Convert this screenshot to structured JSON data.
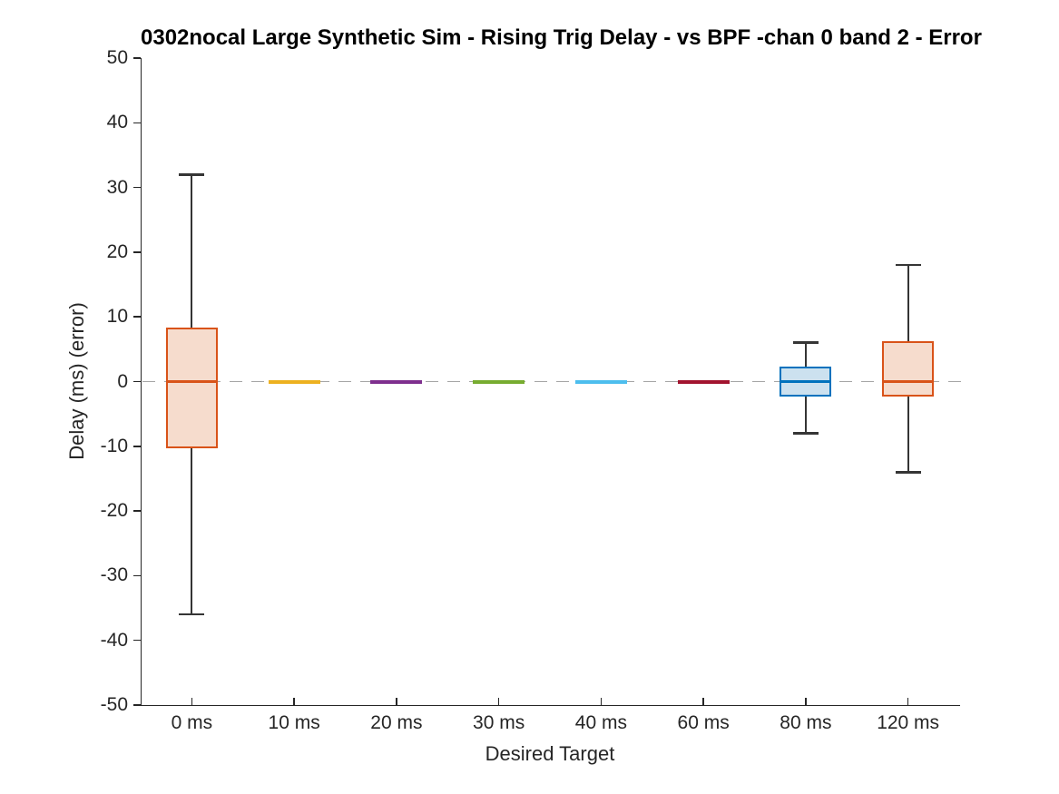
{
  "chart_data": {
    "type": "boxplot",
    "title": "0302nocal Large Synthetic Sim - Rising Trig Delay - vs BPF -chan 0 band 2 - Error",
    "xlabel": "Desired Target",
    "ylabel": "Delay (ms) (error)",
    "categories": [
      "0 ms",
      "10 ms",
      "20 ms",
      "30 ms",
      "40 ms",
      "60 ms",
      "80 ms",
      "120 ms"
    ],
    "ylim": [
      -50,
      50
    ],
    "yticks": [
      -50,
      -40,
      -30,
      -20,
      -10,
      0,
      10,
      20,
      30,
      40,
      50
    ],
    "grid": false,
    "legend": null,
    "zero_line": {
      "y": 0,
      "style": "dashed",
      "color": "#a6a6a6"
    },
    "axis_color": "#262626",
    "whisker_color": "#353535",
    "series": [
      {
        "category": "0 ms",
        "whisker_low": -36,
        "q1": -10,
        "median": 0,
        "q3": 8,
        "whisker_high": 32,
        "edge_color": "#D95319",
        "fill_color": "#F6DCCD"
      },
      {
        "category": "10 ms",
        "whisker_low": 0,
        "q1": 0,
        "median": 0,
        "q3": 0,
        "whisker_high": 0,
        "edge_color": "#EDB120",
        "fill_color": "#FBEFD2"
      },
      {
        "category": "20 ms",
        "whisker_low": 0,
        "q1": 0,
        "median": 0,
        "q3": 0,
        "whisker_high": 0,
        "edge_color": "#7E2F8E",
        "fill_color": "#E5D5EA"
      },
      {
        "category": "30 ms",
        "whisker_low": 0,
        "q1": 0,
        "median": 0,
        "q3": 0,
        "whisker_high": 0,
        "edge_color": "#77AC30",
        "fill_color": "#E4EED6"
      },
      {
        "category": "40 ms",
        "whisker_low": 0,
        "q1": 0,
        "median": 0,
        "q3": 0,
        "whisker_high": 0,
        "edge_color": "#4DBEEE",
        "fill_color": "#DBF2FC"
      },
      {
        "category": "60 ms",
        "whisker_low": 0,
        "q1": 0,
        "median": 0,
        "q3": 0,
        "whisker_high": 0,
        "edge_color": "#A2142F",
        "fill_color": "#ECD0D5"
      },
      {
        "category": "80 ms",
        "whisker_low": -8,
        "q1": -2,
        "median": 0,
        "q3": 2,
        "whisker_high": 6,
        "edge_color": "#0072BD",
        "fill_color": "#CCE1EF"
      },
      {
        "category": "120 ms",
        "whisker_low": -14,
        "q1": -2,
        "median": 0,
        "q3": 6,
        "whisker_high": 18,
        "edge_color": "#D95319",
        "fill_color": "#F6DCCD"
      }
    ]
  }
}
